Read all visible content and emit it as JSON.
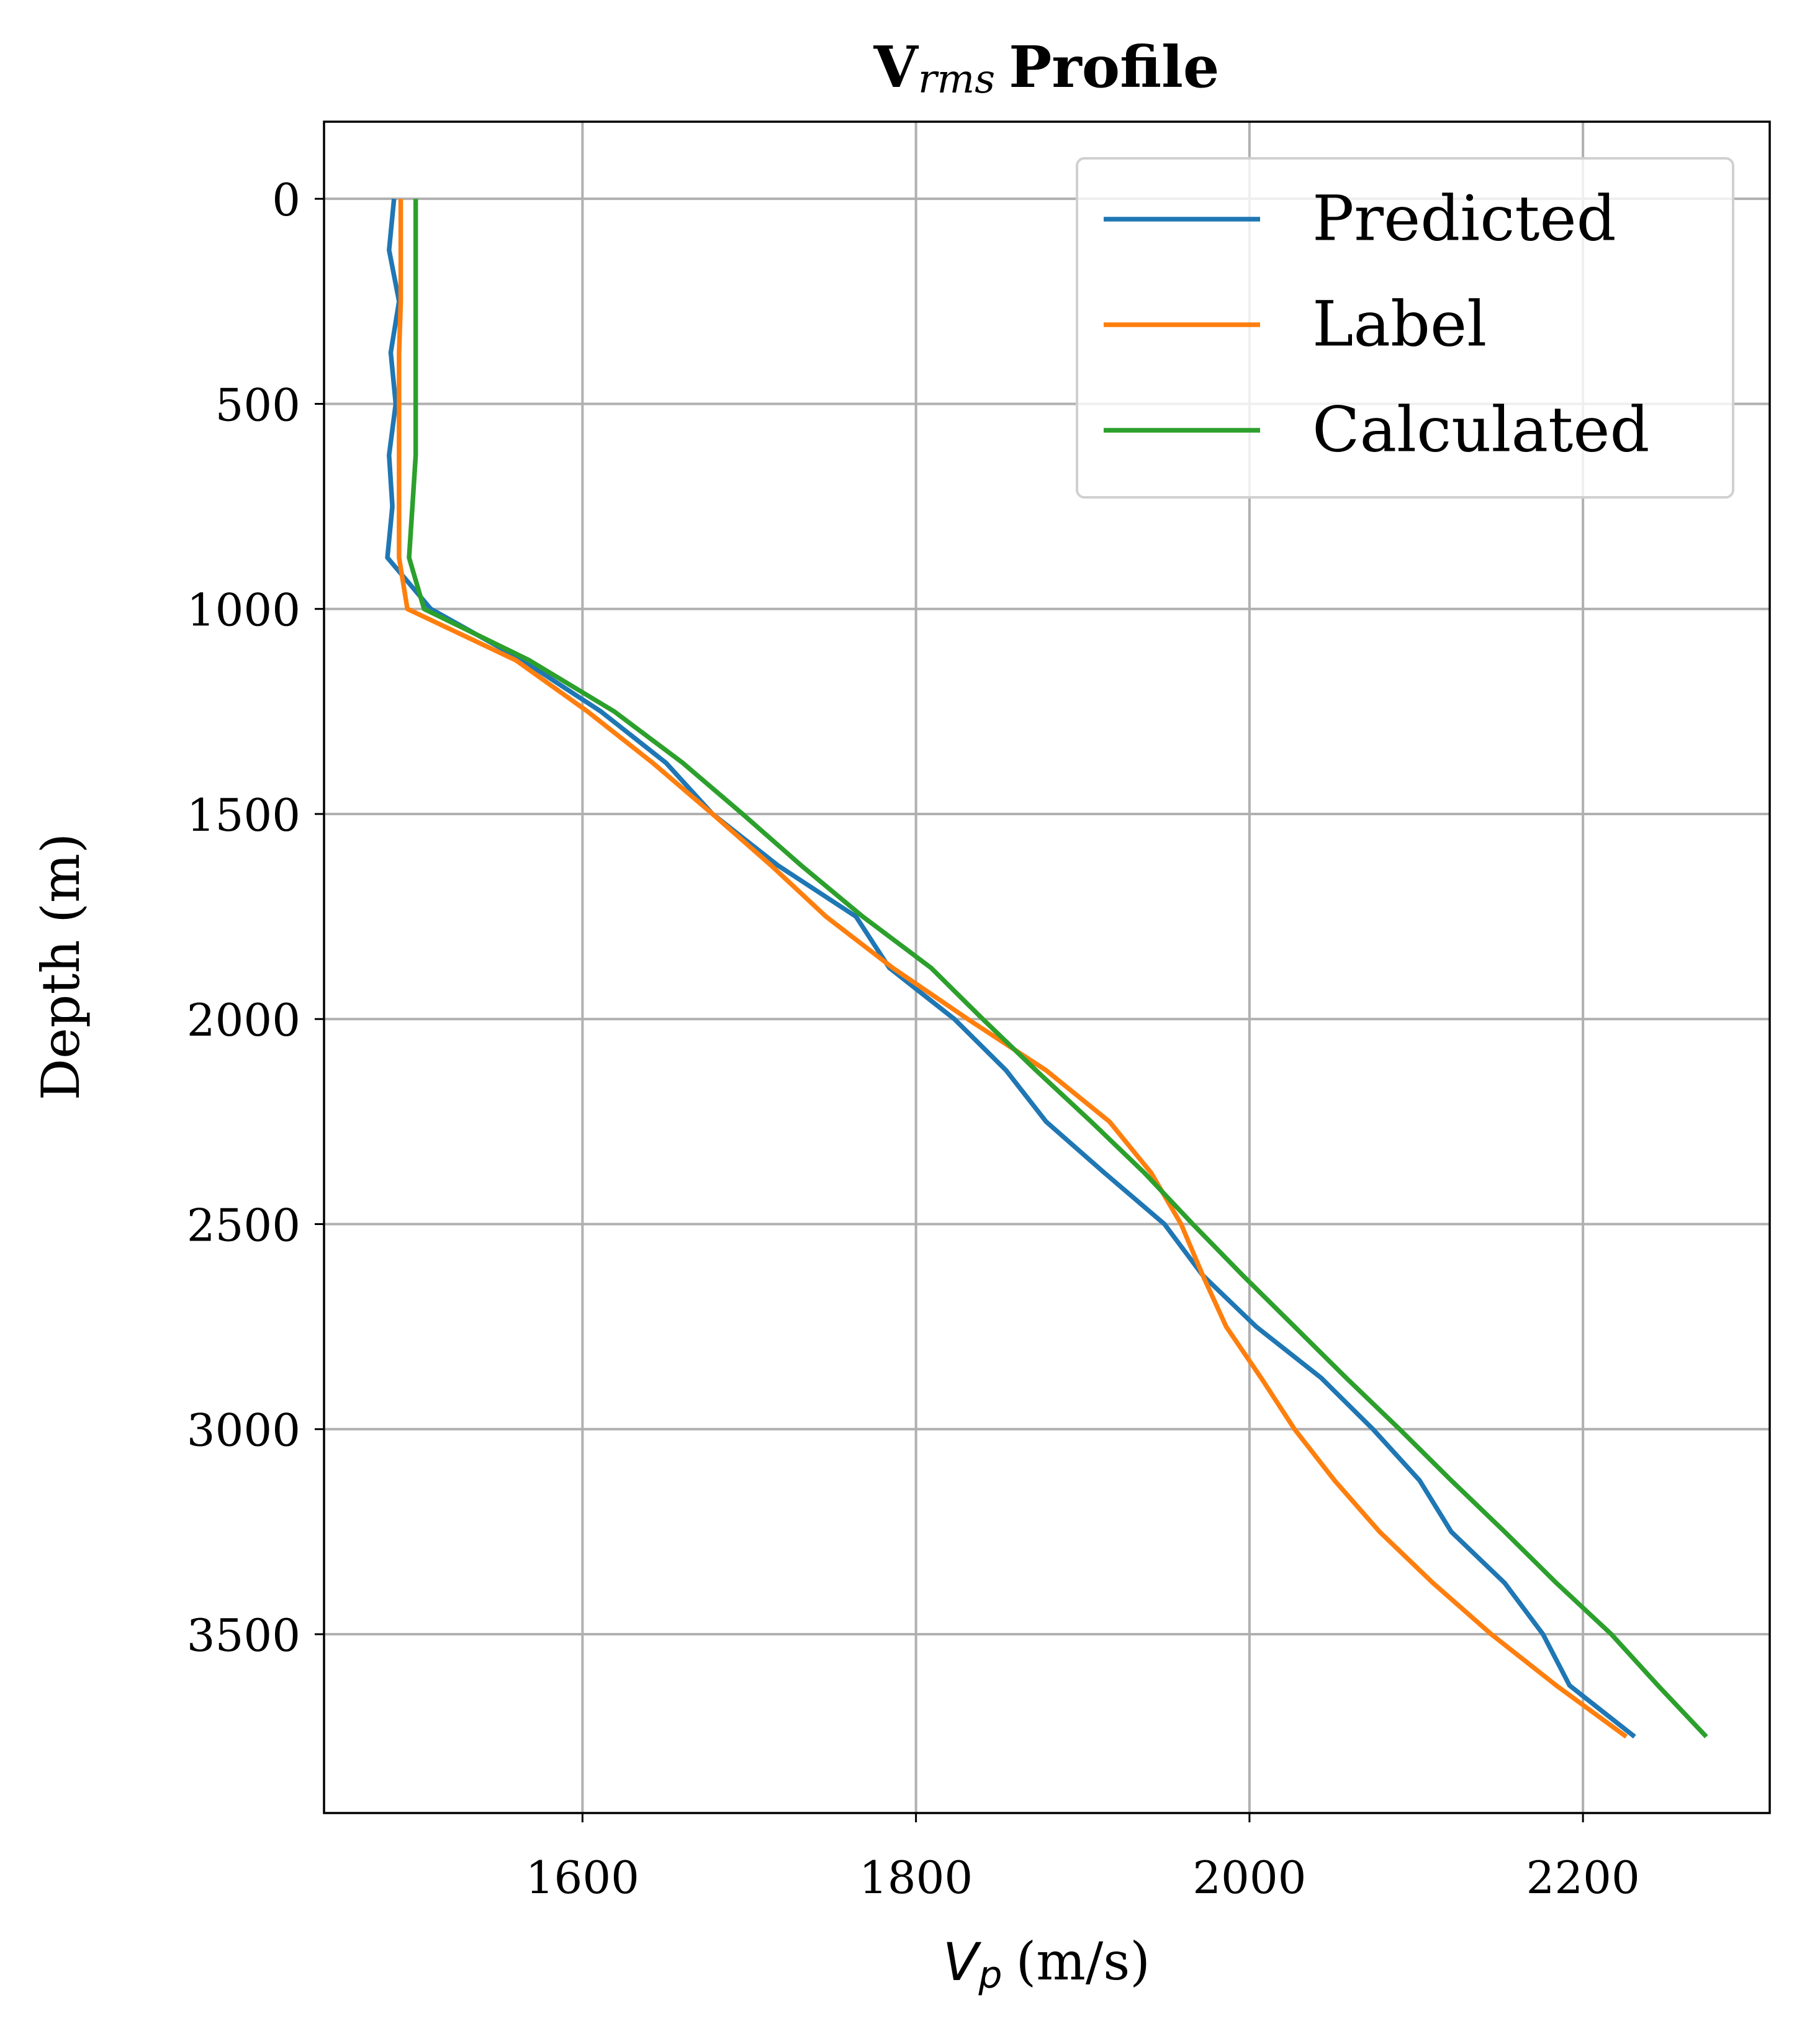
{
  "chart_data": {
    "type": "line",
    "title": {
      "main": "V",
      "sub": "rms",
      "rest": "Profile"
    },
    "x_label": {
      "main": "V",
      "sub": "p",
      "rest": "(m/s)"
    },
    "y_label": "Depth (m)",
    "y": [
      0,
      125,
      250,
      375,
      500,
      625,
      750,
      875,
      1000,
      1125,
      1250,
      1375,
      1500,
      1625,
      1750,
      1875,
      2000,
      2125,
      2250,
      2375,
      2500,
      2625,
      2750,
      2875,
      3000,
      3125,
      3250,
      3375,
      3500,
      3625,
      3750
    ],
    "series": [
      {
        "name": "Predicted",
        "color": "#1f77b4",
        "values": [
          1487,
          1484,
          1490,
          1485,
          1488,
          1484,
          1486,
          1483,
          1509,
          1564,
          1611,
          1650,
          1678,
          1717,
          1764,
          1784,
          1823,
          1854,
          1878,
          1913,
          1949,
          1972,
          2004,
          2043,
          2074,
          2102,
          2121,
          2153,
          2176,
          2192,
          2231
        ]
      },
      {
        "name": "Label",
        "color": "#ff7f0e",
        "values": [
          1491,
          1491,
          1491,
          1490,
          1490,
          1490,
          1490,
          1490,
          1495,
          1560,
          1603,
          1642,
          1678,
          1713,
          1746,
          1786,
          1831,
          1878,
          1916,
          1941,
          1959,
          1972,
          1986,
          2007,
          2027,
          2051,
          2078,
          2110,
          2145,
          2184,
          2226
        ]
      },
      {
        "name": "Calculated",
        "color": "#2ca02c",
        "values": [
          1500,
          1500,
          1500,
          1500,
          1500,
          1500,
          1498,
          1496,
          1505,
          1568,
          1619,
          1660,
          1696,
          1731,
          1768,
          1809,
          1840,
          1872,
          1905,
          1937,
          1966,
          1996,
          2027,
          2058,
          2090,
          2121,
          2153,
          2184,
          2217,
          2245,
          2274
        ]
      }
    ],
    "xlim": [
      1445,
      2312
    ],
    "xticks": [
      1600,
      1800,
      2000,
      2200
    ],
    "ylim": [
      -188,
      3936
    ],
    "yticks": [
      0,
      500,
      1000,
      1500,
      2000,
      2500,
      3000,
      3500
    ],
    "y_inverted": true,
    "grid": true,
    "legend": "upper right"
  }
}
